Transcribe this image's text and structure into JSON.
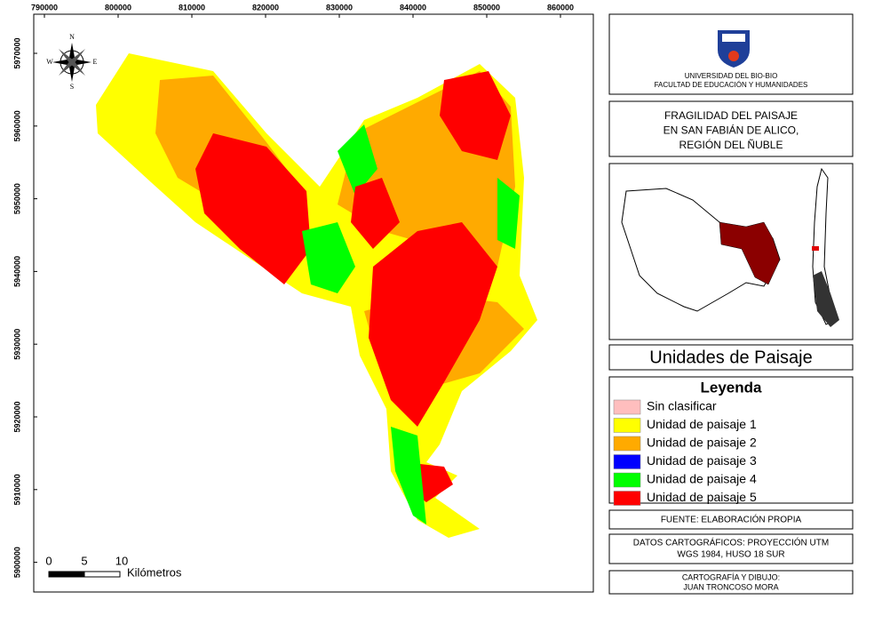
{
  "map": {
    "xticks": [
      "790000",
      "800000",
      "810000",
      "820000",
      "830000",
      "840000",
      "850000",
      "860000"
    ],
    "yticks": [
      "5970000",
      "5960000",
      "5950000",
      "5940000",
      "5930000",
      "5920000",
      "5910000",
      "5900000"
    ],
    "compass": {
      "n": "N",
      "s": "S",
      "e": "E",
      "w": "W"
    },
    "scale": {
      "labels": [
        "0",
        "5",
        "10"
      ],
      "unit": "Kilómetros"
    }
  },
  "header": {
    "university": "UNIVERSIDAD DEL BIO-BIO",
    "faculty": "FACULTAD DE EDUCACIÓN Y HUMANIDADES"
  },
  "title": {
    "lines": [
      "FRAGILIDAD DEL PAISAJE",
      "EN SAN FABIÁN DE ALICO,",
      "REGIÓN DEL ÑUBLE"
    ]
  },
  "panel_title": "Unidades de Paisaje",
  "legend": {
    "title": "Leyenda",
    "items": [
      {
        "name": "Sin clasificar",
        "color": "#ffbebe"
      },
      {
        "name": "Unidad de paisaje 1",
        "color": "#ffff00"
      },
      {
        "name": "Unidad de paisaje 2",
        "color": "#ffaa00"
      },
      {
        "name": "Unidad de paisaje 3",
        "color": "#0000ff"
      },
      {
        "name": "Unidad de paisaje 4",
        "color": "#00ff00"
      },
      {
        "name": "Unidad de paisaje 5",
        "color": "#ff0000"
      }
    ]
  },
  "source": "FUENTE: ELABORACIÓN PROPIA",
  "cartographic": [
    "DATOS CARTOGRÁFICOS: PROYECCIÓN UTM",
    "WGS 1984, HUSO 18 SUR"
  ],
  "credits": [
    "CARTOGRAFÍA Y DIBUJO:",
    "JUAN TRONCOSO MORA"
  ]
}
